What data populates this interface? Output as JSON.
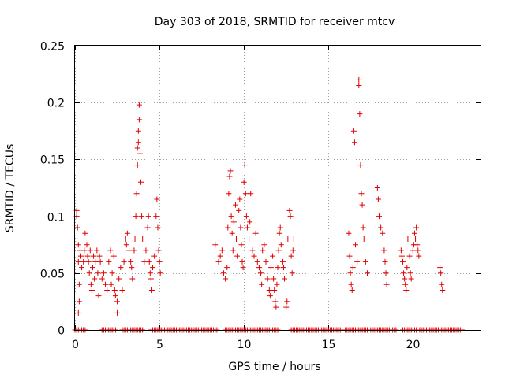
{
  "chart_data": {
    "type": "scatter",
    "title": "Day 303 of 2018, SRMTID for receiver mtcv",
    "xlabel": "GPS time / hours",
    "ylabel": "SRMTID / TECUs",
    "xlim": [
      0,
      24
    ],
    "ylim": [
      0,
      0.25
    ],
    "xticks": [
      0,
      5,
      10,
      15,
      20
    ],
    "xtick_labels": [
      "0",
      "5",
      "10",
      "15",
      "20"
    ],
    "yticks": [
      0,
      0.05,
      0.1,
      0.15,
      0.2,
      0.25
    ],
    "ytick_labels": [
      "0",
      "0.05",
      "0.1",
      "0.15",
      "0.2",
      "0.25"
    ],
    "grid": true,
    "marker": "+",
    "color": "#e00000",
    "series": [
      {
        "name": "SRMTID",
        "points": [
          [
            0.1,
            0.105
          ],
          [
            0.1,
            0.1
          ],
          [
            0.15,
            0.09
          ],
          [
            0.2,
            0.075
          ],
          [
            0.2,
            0.06
          ],
          [
            0.25,
            0.04
          ],
          [
            0.25,
            0.025
          ],
          [
            0.2,
            0.015
          ],
          [
            0.3,
            0.07
          ],
          [
            0.35,
            0.065
          ],
          [
            0.4,
            0.055
          ],
          [
            0.5,
            0.06
          ],
          [
            0.55,
            0.07
          ],
          [
            0.6,
            0.085
          ],
          [
            0.7,
            0.075
          ],
          [
            0.75,
            0.065
          ],
          [
            0.8,
            0.06
          ],
          [
            0.85,
            0.05
          ],
          [
            0.9,
            0.07
          ],
          [
            0.95,
            0.04
          ],
          [
            1.0,
            0.035
          ],
          [
            1.05,
            0.055
          ],
          [
            1.1,
            0.065
          ],
          [
            1.15,
            0.045
          ],
          [
            1.2,
            0.06
          ],
          [
            1.3,
            0.07
          ],
          [
            1.35,
            0.05
          ],
          [
            1.4,
            0.03
          ],
          [
            1.45,
            0.065
          ],
          [
            1.5,
            0.06
          ],
          [
            1.6,
            0.045
          ],
          [
            1.7,
            0.05
          ],
          [
            1.8,
            0.04
          ],
          [
            1.9,
            0.035
          ],
          [
            2.0,
            0.06
          ],
          [
            2.1,
            0.07
          ],
          [
            2.15,
            0.04
          ],
          [
            2.2,
            0.05
          ],
          [
            2.3,
            0.065
          ],
          [
            2.35,
            0.035
          ],
          [
            2.4,
            0.03
          ],
          [
            2.5,
            0.025
          ],
          [
            2.5,
            0.015
          ],
          [
            2.6,
            0.045
          ],
          [
            2.7,
            0.055
          ],
          [
            2.8,
            0.035
          ],
          [
            2.9,
            0.06
          ],
          [
            3.0,
            0.08
          ],
          [
            3.05,
            0.075
          ],
          [
            3.1,
            0.085
          ],
          [
            3.2,
            0.07
          ],
          [
            3.3,
            0.06
          ],
          [
            3.35,
            0.055
          ],
          [
            3.4,
            0.045
          ],
          [
            3.5,
            0.07
          ],
          [
            3.55,
            0.08
          ],
          [
            3.6,
            0.1
          ],
          [
            3.65,
            0.12
          ],
          [
            3.7,
            0.145
          ],
          [
            3.7,
            0.16
          ],
          [
            3.75,
            0.165
          ],
          [
            3.75,
            0.175
          ],
          [
            3.8,
            0.185
          ],
          [
            3.8,
            0.198
          ],
          [
            3.85,
            0.155
          ],
          [
            3.9,
            0.13
          ],
          [
            3.95,
            0.1
          ],
          [
            4.0,
            0.08
          ],
          [
            4.1,
            0.06
          ],
          [
            4.2,
            0.07
          ],
          [
            4.3,
            0.09
          ],
          [
            4.35,
            0.1
          ],
          [
            4.4,
            0.06
          ],
          [
            4.45,
            0.05
          ],
          [
            4.5,
            0.045
          ],
          [
            4.55,
            0.035
          ],
          [
            4.6,
            0.055
          ],
          [
            4.7,
            0.065
          ],
          [
            4.8,
            0.1
          ],
          [
            4.85,
            0.115
          ],
          [
            4.9,
            0.09
          ],
          [
            4.95,
            0.07
          ],
          [
            5.0,
            0.06
          ],
          [
            5.05,
            0.05
          ],
          [
            8.3,
            0.075
          ],
          [
            8.5,
            0.06
          ],
          [
            8.6,
            0.065
          ],
          [
            8.7,
            0.07
          ],
          [
            8.8,
            0.05
          ],
          [
            8.9,
            0.045
          ],
          [
            9.0,
            0.055
          ],
          [
            9.05,
            0.09
          ],
          [
            9.1,
            0.12
          ],
          [
            9.15,
            0.135
          ],
          [
            9.2,
            0.14
          ],
          [
            9.25,
            0.1
          ],
          [
            9.3,
            0.085
          ],
          [
            9.35,
            0.07
          ],
          [
            9.4,
            0.095
          ],
          [
            9.5,
            0.11
          ],
          [
            9.55,
            0.08
          ],
          [
            9.6,
            0.065
          ],
          [
            9.7,
            0.105
          ],
          [
            9.75,
            0.115
          ],
          [
            9.8,
            0.09
          ],
          [
            9.85,
            0.075
          ],
          [
            9.9,
            0.06
          ],
          [
            9.95,
            0.055
          ],
          [
            10.0,
            0.13
          ],
          [
            10.05,
            0.145
          ],
          [
            10.1,
            0.12
          ],
          [
            10.15,
            0.1
          ],
          [
            10.2,
            0.09
          ],
          [
            10.3,
            0.08
          ],
          [
            10.35,
            0.095
          ],
          [
            10.4,
            0.12
          ],
          [
            10.5,
            0.07
          ],
          [
            10.6,
            0.065
          ],
          [
            10.7,
            0.085
          ],
          [
            10.8,
            0.06
          ],
          [
            10.9,
            0.055
          ],
          [
            11.0,
            0.05
          ],
          [
            11.05,
            0.04
          ],
          [
            11.1,
            0.07
          ],
          [
            11.2,
            0.075
          ],
          [
            11.3,
            0.06
          ],
          [
            11.4,
            0.045
          ],
          [
            11.5,
            0.035
          ],
          [
            11.55,
            0.03
          ],
          [
            11.6,
            0.055
          ],
          [
            11.7,
            0.065
          ],
          [
            11.75,
            0.045
          ],
          [
            11.8,
            0.035
          ],
          [
            11.85,
            0.025
          ],
          [
            11.9,
            0.02
          ],
          [
            11.95,
            0.04
          ],
          [
            12.0,
            0.055
          ],
          [
            12.05,
            0.07
          ],
          [
            12.1,
            0.085
          ],
          [
            12.15,
            0.09
          ],
          [
            12.2,
            0.075
          ],
          [
            12.3,
            0.06
          ],
          [
            12.35,
            0.055
          ],
          [
            12.4,
            0.045
          ],
          [
            12.5,
            0.02
          ],
          [
            12.55,
            0.025
          ],
          [
            12.6,
            0.08
          ],
          [
            12.7,
            0.105
          ],
          [
            12.75,
            0.1
          ],
          [
            12.8,
            0.065
          ],
          [
            12.85,
            0.05
          ],
          [
            12.9,
            0.07
          ],
          [
            12.95,
            0.08
          ],
          [
            16.2,
            0.085
          ],
          [
            16.25,
            0.065
          ],
          [
            16.3,
            0.05
          ],
          [
            16.35,
            0.04
          ],
          [
            16.4,
            0.035
          ],
          [
            16.45,
            0.055
          ],
          [
            16.5,
            0.175
          ],
          [
            16.55,
            0.165
          ],
          [
            16.6,
            0.075
          ],
          [
            16.7,
            0.06
          ],
          [
            16.8,
            0.22
          ],
          [
            16.8,
            0.215
          ],
          [
            16.85,
            0.19
          ],
          [
            16.9,
            0.145
          ],
          [
            16.95,
            0.12
          ],
          [
            17.0,
            0.11
          ],
          [
            17.05,
            0.09
          ],
          [
            17.1,
            0.08
          ],
          [
            17.2,
            0.06
          ],
          [
            17.3,
            0.05
          ],
          [
            17.9,
            0.125
          ],
          [
            17.95,
            0.115
          ],
          [
            18.0,
            0.1
          ],
          [
            18.1,
            0.09
          ],
          [
            18.2,
            0.085
          ],
          [
            18.3,
            0.07
          ],
          [
            18.35,
            0.06
          ],
          [
            18.4,
            0.05
          ],
          [
            18.45,
            0.04
          ],
          [
            19.3,
            0.07
          ],
          [
            19.35,
            0.065
          ],
          [
            19.4,
            0.06
          ],
          [
            19.45,
            0.05
          ],
          [
            19.5,
            0.045
          ],
          [
            19.55,
            0.04
          ],
          [
            19.6,
            0.035
          ],
          [
            19.65,
            0.055
          ],
          [
            19.7,
            0.08
          ],
          [
            19.8,
            0.065
          ],
          [
            19.85,
            0.05
          ],
          [
            19.9,
            0.045
          ],
          [
            20.0,
            0.07
          ],
          [
            20.05,
            0.075
          ],
          [
            20.1,
            0.085
          ],
          [
            20.15,
            0.08
          ],
          [
            20.2,
            0.09
          ],
          [
            20.25,
            0.075
          ],
          [
            20.3,
            0.07
          ],
          [
            20.35,
            0.065
          ],
          [
            21.6,
            0.055
          ],
          [
            21.65,
            0.05
          ],
          [
            21.7,
            0.04
          ],
          [
            21.75,
            0.035
          ]
        ],
        "zero_intervals": [
          [
            0,
            0.6
          ],
          [
            1.6,
            2.4
          ],
          [
            2.8,
            4.0
          ],
          [
            4.5,
            5.0
          ],
          [
            5.0,
            8.4
          ],
          [
            8.9,
            12.0
          ],
          [
            12.8,
            15.7
          ],
          [
            16.0,
            17.3
          ],
          [
            17.5,
            19.0
          ],
          [
            19.4,
            20.2
          ],
          [
            20.4,
            22.9
          ]
        ]
      }
    ]
  }
}
